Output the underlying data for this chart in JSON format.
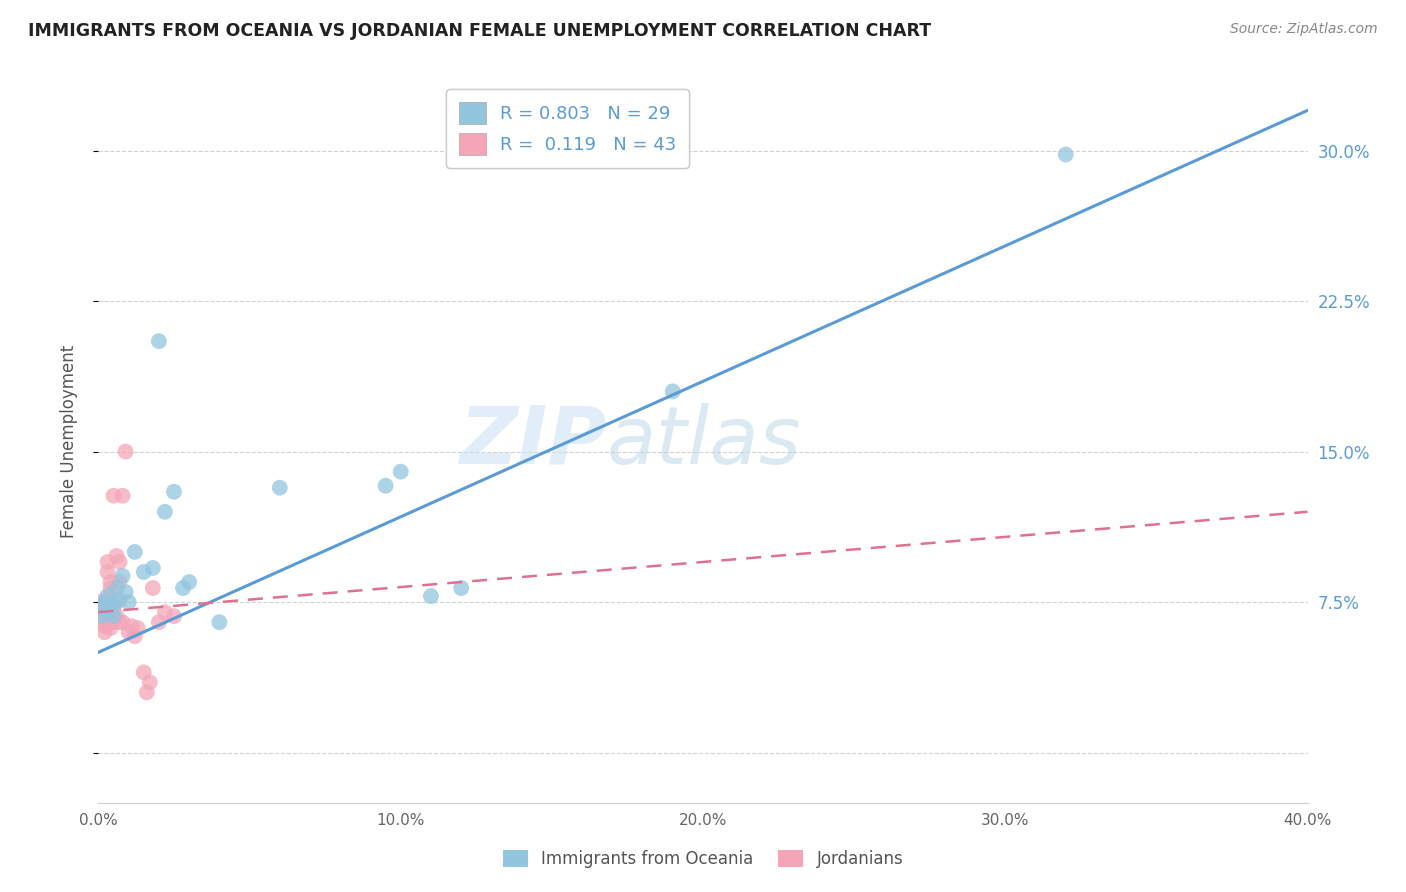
{
  "title": "IMMIGRANTS FROM OCEANIA VS JORDANIAN FEMALE UNEMPLOYMENT CORRELATION CHART",
  "source": "Source: ZipAtlas.com",
  "ylabel": "Female Unemployment",
  "xmin": 0.0,
  "xmax": 0.4,
  "ymin": -0.025,
  "ymax": 0.335,
  "yticks": [
    0.0,
    0.075,
    0.15,
    0.225,
    0.3
  ],
  "ytick_labels": [
    "",
    "7.5%",
    "15.0%",
    "22.5%",
    "30.0%"
  ],
  "xticks": [
    0.0,
    0.1,
    0.2,
    0.3,
    0.4
  ],
  "xtick_labels": [
    "0.0%",
    "10.0%",
    "20.0%",
    "30.0%",
    "40.0%"
  ],
  "legend_label1": "Immigrants from Oceania",
  "legend_label2": "Jordanians",
  "R1": 0.803,
  "N1": 29,
  "R2": 0.119,
  "N2": 43,
  "blue_color": "#92c5de",
  "pink_color": "#f4a6b8",
  "blue_line_color": "#5b9bd5",
  "pink_line_color": "#e07090",
  "watermark_zip": "ZIP",
  "watermark_atlas": "atlas",
  "blue_scatter_x": [
    0.001,
    0.002,
    0.002,
    0.003,
    0.003,
    0.004,
    0.005,
    0.005,
    0.006,
    0.007,
    0.008,
    0.009,
    0.01,
    0.012,
    0.015,
    0.018,
    0.02,
    0.022,
    0.025,
    0.028,
    0.03,
    0.04,
    0.06,
    0.095,
    0.1,
    0.11,
    0.12,
    0.19,
    0.32
  ],
  "blue_scatter_y": [
    0.068,
    0.073,
    0.075,
    0.07,
    0.078,
    0.072,
    0.074,
    0.068,
    0.082,
    0.076,
    0.088,
    0.08,
    0.075,
    0.1,
    0.09,
    0.092,
    0.205,
    0.12,
    0.13,
    0.082,
    0.085,
    0.065,
    0.132,
    0.133,
    0.14,
    0.078,
    0.082,
    0.18,
    0.298
  ],
  "pink_scatter_x": [
    0.001,
    0.001,
    0.001,
    0.001,
    0.002,
    0.002,
    0.002,
    0.002,
    0.002,
    0.003,
    0.003,
    0.003,
    0.003,
    0.003,
    0.004,
    0.004,
    0.004,
    0.004,
    0.004,
    0.005,
    0.005,
    0.005,
    0.005,
    0.006,
    0.006,
    0.006,
    0.007,
    0.007,
    0.007,
    0.008,
    0.008,
    0.009,
    0.01,
    0.011,
    0.012,
    0.013,
    0.015,
    0.016,
    0.017,
    0.018,
    0.02,
    0.022,
    0.025
  ],
  "pink_scatter_y": [
    0.065,
    0.068,
    0.07,
    0.073,
    0.06,
    0.063,
    0.068,
    0.072,
    0.076,
    0.065,
    0.07,
    0.075,
    0.09,
    0.095,
    0.062,
    0.065,
    0.068,
    0.082,
    0.085,
    0.065,
    0.068,
    0.072,
    0.128,
    0.068,
    0.075,
    0.098,
    0.065,
    0.085,
    0.095,
    0.065,
    0.128,
    0.15,
    0.06,
    0.063,
    0.058,
    0.062,
    0.04,
    0.03,
    0.035,
    0.082,
    0.065,
    0.07,
    0.068
  ],
  "blue_trendline_x": [
    0.0,
    0.4
  ],
  "blue_trendline_y": [
    0.05,
    0.32
  ],
  "pink_trendline_x": [
    0.0,
    0.4
  ],
  "pink_trendline_y": [
    0.07,
    0.12
  ]
}
